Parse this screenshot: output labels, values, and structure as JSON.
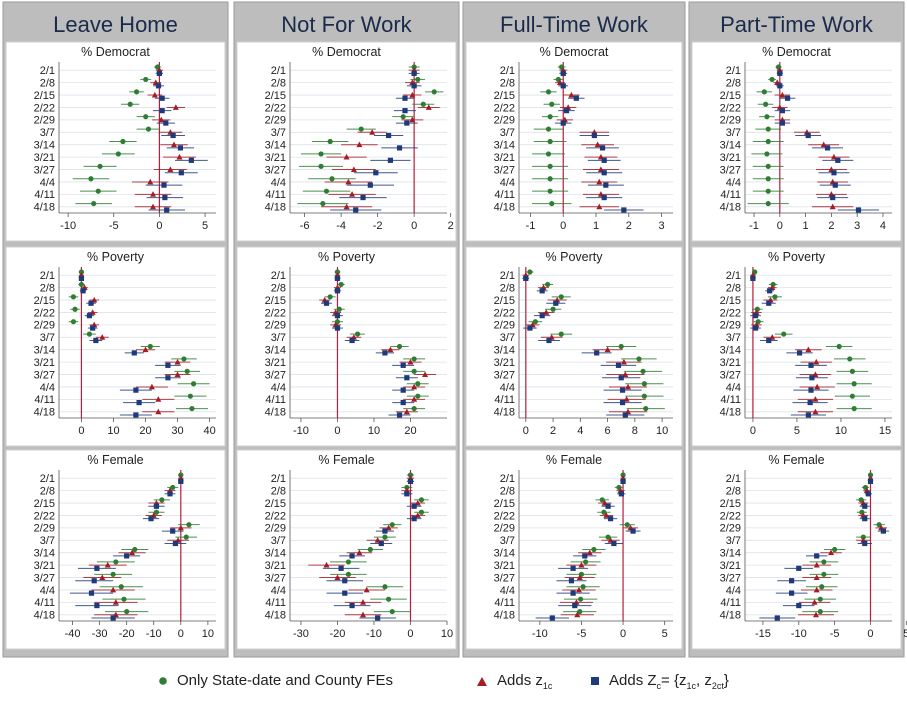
{
  "chart_data": {
    "type": "scatter",
    "variant": "coefficient-plot-with-95pct-ci",
    "columns": [
      "Leave Home",
      "Not For Work",
      "Full-Time Work",
      "Part-Time Work"
    ],
    "rows": [
      "% Democrat",
      "% Poverty",
      "% Female"
    ],
    "dates": [
      "2/1",
      "2/8",
      "2/15",
      "2/22",
      "2/29",
      "3/7",
      "3/14",
      "3/21",
      "3/27",
      "4/4",
      "4/11",
      "4/18"
    ],
    "series": [
      {
        "name": "Only State-date and County FEs",
        "marker": "circle",
        "color": "#2e7d32"
      },
      {
        "name": "Adds z1c",
        "marker": "triangle",
        "color": "#a51c24"
      },
      {
        "name": "Adds Zc={z1c, z2ct}",
        "marker": "square",
        "color": "#1f3a7a"
      }
    ],
    "legend_labels": {
      "s1": "Only State-date and County FEs",
      "s2_text": "Adds z",
      "s2_sub": "1c",
      "s3_text": "Adds Z",
      "s3_sub_c": "c",
      "s3_eq": "= {z",
      "s3_sub_1c": "1c",
      "s3_mid": ", z",
      "s3_sub_2ct": "2ct",
      "s3_end": "}"
    },
    "legend_position": "bottom",
    "panels": [
      {
        "col": 0,
        "row": 0,
        "title": "% Democrat",
        "xlim": [
          -11,
          6.2
        ],
        "ticks": [
          -10,
          -5,
          0,
          5
        ],
        "s1": [
          -0.2,
          -1.5,
          -2.5,
          -3.2,
          -1.5,
          -1.2,
          -4,
          -4.5,
          -6.5,
          -7.5,
          -6.7,
          -7.2
        ],
        "s2": [
          0,
          -0.4,
          -0.5,
          1.8,
          0.2,
          1.2,
          1.6,
          2.2,
          1.2,
          -1,
          -0.7,
          -0.7
        ],
        "s3": [
          0,
          -0.1,
          0.3,
          0.3,
          0.7,
          1.5,
          2.3,
          3.5,
          2.4,
          0.5,
          0.6,
          0.8
        ],
        "ci": [
          0.4,
          0.6,
          0.8,
          1,
          1,
          1.3,
          1.5,
          1.8,
          1.8,
          2,
          2,
          2
        ]
      },
      {
        "col": 1,
        "row": 0,
        "title": "% Democrat",
        "xlim": [
          -6.8,
          1.8
        ],
        "ticks": [
          -6,
          -4,
          -2,
          0,
          2
        ],
        "s1": [
          0,
          0.2,
          1.1,
          0.5,
          -0.6,
          -2.9,
          -4.6,
          -5.1,
          -5.1,
          -4.5,
          -4.8,
          -5
        ],
        "s2": [
          0,
          -0.1,
          -0.1,
          0.8,
          -0.1,
          -2.3,
          -3,
          -3.7,
          -3.3,
          -3.6,
          -3.4,
          -3.7
        ],
        "s3": [
          0,
          0,
          -0.5,
          -0.5,
          -0.4,
          -1.4,
          -0.8,
          -1.3,
          -2.1,
          -2.4,
          -2.8,
          -3.2
        ],
        "ci": [
          0.3,
          0.4,
          0.5,
          0.6,
          0.6,
          0.8,
          1,
          1.1,
          1.2,
          1.3,
          1.3,
          1.4
        ]
      },
      {
        "col": 2,
        "row": 0,
        "title": "% Democrat",
        "xlim": [
          -1.35,
          3.35
        ],
        "ticks": [
          -1,
          0,
          1,
          2,
          3
        ],
        "s1": [
          -0.05,
          -0.15,
          -0.45,
          -0.35,
          -0.4,
          -0.45,
          -0.4,
          -0.45,
          -0.4,
          -0.4,
          -0.4,
          -0.35
        ],
        "s2": [
          0,
          -0.1,
          0.25,
          0.15,
          0.05,
          0.95,
          1.05,
          1.15,
          1.15,
          1.1,
          1.15,
          1.1
        ],
        "s3": [
          0,
          0,
          0.4,
          0.1,
          0.0,
          0.95,
          1.2,
          1.25,
          1.25,
          1.3,
          1.25,
          1.85
        ],
        "ci": [
          0.12,
          0.15,
          0.25,
          0.25,
          0.25,
          0.45,
          0.5,
          0.5,
          0.55,
          0.55,
          0.55,
          0.6
        ]
      },
      {
        "col": 3,
        "row": 0,
        "title": "% Democrat",
        "xlim": [
          -1.35,
          4.35
        ],
        "ticks": [
          -1,
          0,
          1,
          2,
          3,
          4
        ],
        "s1": [
          -0.05,
          -0.3,
          -0.6,
          -0.55,
          -0.5,
          -0.45,
          -0.45,
          -0.5,
          -0.45,
          -0.45,
          -0.45,
          -0.45
        ],
        "s2": [
          0,
          -0.1,
          0.1,
          0,
          0.1,
          1.05,
          1.7,
          2.1,
          2,
          2.05,
          2,
          2.05
        ],
        "s3": [
          0,
          0,
          0.3,
          0.1,
          0.1,
          1.1,
          1.85,
          2.25,
          2.1,
          2.15,
          2.05,
          3.05
        ],
        "ci": [
          0.12,
          0.15,
          0.3,
          0.3,
          0.3,
          0.5,
          0.6,
          0.6,
          0.6,
          0.6,
          0.6,
          0.8
        ]
      },
      {
        "col": 0,
        "row": 1,
        "title": "% Poverty",
        "xlim": [
          -7,
          42
        ],
        "ticks": [
          0,
          10,
          20,
          30,
          40
        ],
        "s1": [
          0,
          0,
          -2.5,
          -2,
          -2.5,
          2.5,
          21.5,
          32,
          33,
          35,
          34,
          34.5
        ],
        "s2": [
          0,
          1,
          4,
          3.5,
          4,
          6.5,
          20,
          30,
          30,
          22,
          24,
          24
        ],
        "s3": [
          0,
          0.5,
          3,
          2.5,
          3.5,
          4.5,
          16.5,
          27,
          27,
          17,
          18,
          17
        ],
        "ci": [
          0.8,
          1,
          1.5,
          1.5,
          1.5,
          2,
          3,
          4,
          4,
          5,
          5,
          5
        ]
      },
      {
        "col": 1,
        "row": 1,
        "title": "% Poverty",
        "xlim": [
          -13,
          30
        ],
        "ticks": [
          -10,
          0,
          10,
          20
        ],
        "s1": [
          0,
          1,
          -2,
          0.5,
          0,
          5.5,
          17,
          21,
          21,
          22,
          22,
          21
        ],
        "s2": [
          0,
          0,
          -3.5,
          -0.5,
          -0.5,
          4.5,
          14.5,
          20,
          24,
          21,
          21,
          19
        ],
        "s3": [
          0,
          0,
          -3,
          0,
          0,
          4,
          13,
          18,
          19,
          18,
          18,
          17
        ],
        "ci": [
          0.8,
          1,
          1.5,
          1.5,
          1.5,
          2,
          2.5,
          3,
          3,
          3,
          3,
          3
        ]
      },
      {
        "col": 2,
        "row": 1,
        "title": "% Poverty",
        "xlim": [
          -0.5,
          10.8
        ],
        "ticks": [
          0,
          2,
          4,
          6,
          8,
          10
        ],
        "s1": [
          0.3,
          1.6,
          2.6,
          2,
          0.7,
          2.6,
          7,
          8.3,
          8.6,
          8.7,
          8.7,
          8.8
        ],
        "s2": [
          0,
          1.3,
          2.3,
          1.5,
          0.5,
          1.9,
          6,
          7.2,
          7.3,
          7.5,
          7.4,
          7.5
        ],
        "s3": [
          0,
          1.2,
          2.2,
          1.2,
          0.3,
          1.7,
          5.2,
          6.8,
          7,
          7.1,
          7.1,
          7.3
        ],
        "ci": [
          0.25,
          0.4,
          0.7,
          0.6,
          0.5,
          0.8,
          1.1,
          1.3,
          1.4,
          1.4,
          1.4,
          1.4
        ]
      },
      {
        "col": 3,
        "row": 1,
        "title": "% Poverty",
        "xlim": [
          -0.9,
          15.8
        ],
        "ticks": [
          0,
          5,
          10,
          15
        ],
        "s1": [
          0.2,
          2.3,
          2.5,
          0.5,
          0.6,
          3.5,
          9.8,
          11,
          11.3,
          11.5,
          11.3,
          11.5
        ],
        "s2": [
          0,
          2.2,
          2,
          0.4,
          0.4,
          2.2,
          6.3,
          7.2,
          7.1,
          7.3,
          7.1,
          7.1
        ],
        "s3": [
          0,
          1.9,
          1.8,
          0.3,
          0.3,
          1.8,
          5.3,
          6.6,
          6.7,
          6.6,
          6.5,
          6.3
        ],
        "ci": [
          0.3,
          0.5,
          0.8,
          0.6,
          0.6,
          1,
          1.5,
          1.8,
          1.8,
          2,
          2,
          2
        ]
      },
      {
        "col": 0,
        "row": 2,
        "title": "% Female",
        "xlim": [
          -45,
          13
        ],
        "ticks": [
          -40,
          -30,
          -20,
          -10,
          0,
          10
        ],
        "s1": [
          0,
          -3,
          -7,
          -9,
          3,
          2,
          -17,
          -24,
          -25,
          -22,
          -21,
          -20
        ],
        "s2": [
          0,
          -4,
          -9,
          -10,
          0,
          -1,
          -18,
          -27,
          -29,
          -25,
          -24,
          -24
        ],
        "s3": [
          0,
          -4,
          -9,
          -11,
          -3,
          -2,
          -20,
          -31,
          -32,
          -33,
          -31,
          -25
        ],
        "ci": [
          1,
          2,
          3,
          3,
          4,
          4,
          5,
          7,
          7,
          8,
          8,
          8
        ]
      },
      {
        "col": 1,
        "row": 2,
        "title": "% Female",
        "xlim": [
          -33,
          10
        ],
        "ticks": [
          -30,
          -20,
          -10,
          0,
          10
        ],
        "s1": [
          0,
          -1,
          3,
          3,
          -5,
          -7,
          -11,
          -17,
          -17,
          -7,
          -6,
          -5
        ],
        "s2": [
          0,
          -1,
          2,
          2,
          -6,
          -9,
          -14,
          -23,
          -20,
          -12,
          -13,
          -13
        ],
        "s3": [
          0,
          -1,
          1,
          1,
          -7,
          -8,
          -16,
          -19,
          -18,
          -18,
          -16,
          -9
        ],
        "ci": [
          1,
          1.5,
          2,
          2,
          2.5,
          3,
          3.5,
          5,
          5,
          5,
          5,
          5
        ]
      },
      {
        "col": 2,
        "row": 2,
        "title": "% Female",
        "xlim": [
          -12.5,
          6
        ],
        "ticks": [
          -10,
          -5,
          0,
          5
        ],
        "s1": [
          0,
          -0.5,
          -2.5,
          -2.3,
          0.5,
          -1.8,
          -3.5,
          -4.5,
          -5,
          -4.8,
          -5.1,
          -5.2
        ],
        "s2": [
          0,
          -0.3,
          -2.2,
          -2,
          0.9,
          -1.5,
          -4,
          -5,
          -5.2,
          -5.3,
          -5.6,
          -5.5
        ],
        "s3": [
          0,
          -0.2,
          -1.8,
          -1.5,
          1.2,
          -1.1,
          -4.6,
          -6,
          -6.2,
          -6,
          -5.8,
          -8.5
        ],
        "ci": [
          0.3,
          0.5,
          0.8,
          0.8,
          0.9,
          1.1,
          1.4,
          1.8,
          1.8,
          2,
          2,
          2
        ]
      },
      {
        "col": 3,
        "row": 2,
        "title": "% Female",
        "xlim": [
          -17.5,
          3
        ],
        "ticks": [
          -15,
          -10,
          -5,
          0,
          5
        ],
        "s1": [
          0,
          -0.7,
          -1.3,
          -1.2,
          1.2,
          -1,
          -5,
          -6.5,
          -6.5,
          -6.8,
          -7,
          -7
        ],
        "s2": [
          0,
          -0.5,
          -1,
          -1,
          1.5,
          -1,
          -5.5,
          -7.5,
          -7.5,
          -7.5,
          -7.8,
          -7.6
        ],
        "s3": [
          0,
          -0.3,
          -0.8,
          -0.8,
          1.8,
          -0.8,
          -7.5,
          -10,
          -11,
          -11,
          -10,
          -13
        ],
        "ci": [
          0.3,
          0.5,
          0.7,
          0.7,
          0.8,
          1,
          1.5,
          2,
          2,
          2.2,
          2.2,
          2.5
        ]
      }
    ]
  }
}
